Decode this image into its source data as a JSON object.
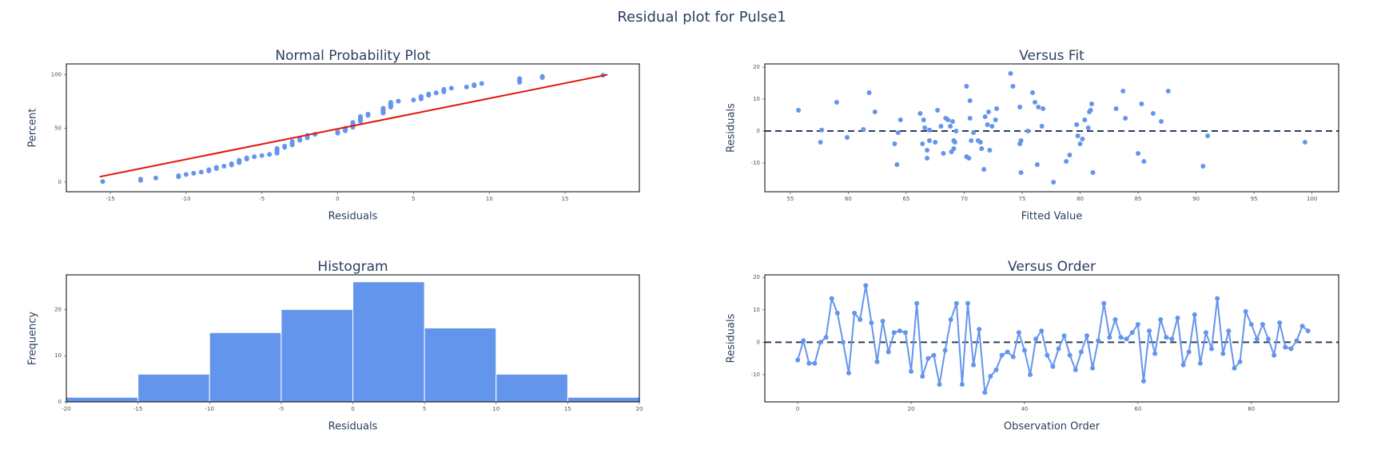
{
  "title": "Residual plot for Pulse1",
  "chart_data": [
    {
      "type": "scatter",
      "title": "Normal Probability Plot",
      "xlabel": "Residuals",
      "ylabel": "Percent",
      "color": "#6495ed",
      "x": [
        -15.5,
        -13,
        -13,
        -12,
        -10.5,
        -10.5,
        -10,
        -9.5,
        -9,
        -8.5,
        -8.5,
        -8,
        -8,
        -7.5,
        -7,
        -7,
        -6.5,
        -6.5,
        -6.5,
        -6,
        -6,
        -5.5,
        -5,
        -4.5,
        -4,
        -4,
        -4,
        -4,
        -4,
        -3.5,
        -3.5,
        -3,
        -3,
        -3,
        -3,
        -2.5,
        -2.5,
        -2,
        -2,
        -2,
        -1.5,
        0,
        0,
        0.5,
        0.5,
        0.5,
        1,
        1,
        1,
        1,
        1,
        1.5,
        1.5,
        1.5,
        1.5,
        1.5,
        2,
        2,
        3,
        3,
        3,
        3,
        3,
        3.5,
        3.5,
        3.5,
        3.5,
        3.5,
        4,
        5,
        5.5,
        5.5,
        5.5,
        6,
        6,
        6.5,
        7,
        7,
        7,
        7.5,
        8.5,
        9,
        9,
        9.5,
        12,
        12,
        12,
        12,
        13.5,
        13.5,
        17.5
      ],
      "y": [
        0.5,
        1.6,
        2.7,
        3.8,
        4.9,
        6.0,
        7.1,
        8.2,
        9.3,
        10.4,
        11.5,
        12.6,
        13.7,
        14.8,
        15.9,
        17.0,
        18.1,
        19.2,
        20.3,
        21.4,
        22.5,
        23.6,
        24.7,
        25.8,
        26.9,
        28.0,
        29.1,
        30.2,
        31.3,
        32.4,
        33.5,
        34.6,
        35.7,
        36.8,
        37.9,
        39.0,
        40.1,
        41.2,
        42.3,
        43.4,
        44.5,
        45.6,
        46.7,
        47.8,
        48.9,
        50.0,
        51.1,
        52.2,
        53.3,
        54.4,
        55.5,
        56.6,
        57.7,
        58.8,
        59.9,
        61.0,
        62.1,
        63.2,
        64.3,
        65.4,
        66.5,
        67.6,
        68.7,
        69.8,
        70.9,
        72.0,
        73.1,
        74.2,
        75.3,
        76.4,
        77.5,
        78.6,
        79.7,
        80.8,
        81.9,
        83.0,
        84.1,
        85.2,
        86.3,
        87.4,
        88.5,
        89.6,
        90.7,
        91.8,
        92.9,
        94.0,
        95.1,
        96.2,
        97.3,
        98.4,
        99.5
      ],
      "fit_line": {
        "x": [
          -15.7,
          17.8
        ],
        "y": [
          5,
          100
        ],
        "color": "#e3120b"
      },
      "xlim": [
        -17.9,
        19.9
      ],
      "ylim": [
        -9,
        110
      ],
      "xticks": [
        -15,
        -10,
        -5,
        0,
        5,
        10,
        15
      ],
      "yticks": [
        0,
        50,
        100
      ]
    },
    {
      "type": "scatter",
      "title": "Versus Fit",
      "xlabel": "Fitted Value",
      "ylabel": "Residuals",
      "color": "#6495ed",
      "x": [
        55.7,
        57.6,
        57.7,
        59,
        59.9,
        61.3,
        61.8,
        62.3,
        64,
        64.2,
        64.5,
        64.3,
        66.2,
        66.4,
        66.5,
        66.6,
        66.8,
        66.8,
        67,
        67,
        67.5,
        67.7,
        68,
        68.2,
        68.4,
        68.6,
        68.8,
        68.9,
        69,
        69.1,
        69.1,
        69.3,
        69.2,
        70.2,
        70.2,
        70.4,
        70.5,
        70.5,
        70.6,
        70.8,
        71.2,
        71.4,
        71.5,
        71.7,
        71.8,
        72.1,
        72.2,
        72,
        72.4,
        72.7,
        72.8,
        74,
        74.2,
        74.8,
        74.8,
        74.9,
        74.9,
        75.5,
        75.9,
        76.1,
        76.3,
        76.4,
        76.7,
        76.8,
        77.7,
        78.8,
        79.1,
        79.7,
        79.8,
        80,
        80.2,
        80.4,
        80.7,
        80.8,
        80.9,
        81,
        81.1,
        83.1,
        83.7,
        83.9,
        85,
        85.3,
        85.5,
        86.3,
        87,
        87.6,
        90.6,
        91,
        99.4
      ],
      "y": [
        6.5,
        -3.5,
        0.3,
        9,
        -2,
        0.5,
        12,
        6,
        -4,
        -10.5,
        3.5,
        -0.5,
        5.5,
        -4,
        3.5,
        1,
        -6,
        -8.5,
        -3,
        0.3,
        -3.5,
        6.5,
        1.5,
        -7,
        4,
        3.5,
        1.5,
        -6.5,
        3,
        -3,
        -5.5,
        0,
        -3.5,
        14,
        -8,
        -8.5,
        9.5,
        4,
        -3,
        -0.5,
        -3,
        -3.5,
        -5.5,
        -12,
        4.5,
        6,
        -6,
        2,
        1.5,
        3.5,
        7,
        18,
        14,
        7.5,
        -4,
        -13,
        -3,
        0,
        12,
        9,
        -10.5,
        7.5,
        1.5,
        7,
        -16,
        -9.5,
        -7.5,
        2,
        -1.5,
        -4,
        -2.5,
        3.5,
        1,
        6,
        6.5,
        8.5,
        -13,
        7,
        12.5,
        4,
        -7,
        8.5,
        -9.5,
        5.5,
        3,
        12.5,
        -11,
        -1.5,
        -3.5
      ],
      "ref_line": {
        "y": 0,
        "color": "#2a3f5f"
      },
      "xlim": [
        52.8,
        102.3
      ],
      "ylim": [
        -19,
        21
      ],
      "xticks": [
        55,
        60,
        65,
        70,
        75,
        80,
        85,
        90,
        95,
        100
      ],
      "yticks": [
        -10,
        0,
        10,
        20
      ]
    },
    {
      "type": "histogram",
      "title": "Histogram",
      "xlabel": "Residuals",
      "ylabel": "Frequency",
      "color": "#6495ed",
      "bins": [
        -20,
        -15,
        -10,
        -5,
        0,
        5,
        10,
        15,
        20
      ],
      "counts": [
        1,
        6,
        15,
        20,
        26,
        16,
        6,
        1
      ],
      "xlim": [
        -20,
        20
      ],
      "ylim": [
        0,
        27.5
      ],
      "xticks": [
        -20,
        -15,
        -10,
        -5,
        0,
        5,
        10,
        15,
        20
      ],
      "yticks": [
        0,
        10,
        20
      ]
    },
    {
      "type": "line",
      "title": "Versus Order",
      "xlabel": "Observation Order",
      "ylabel": "Residuals",
      "color": "#6495ed",
      "x": [
        0,
        1,
        2,
        3,
        4,
        5,
        6,
        7,
        8,
        9,
        10,
        11,
        12,
        13,
        14,
        15,
        16,
        17,
        18,
        19,
        20,
        21,
        22,
        23,
        24,
        25,
        26,
        27,
        28,
        29,
        30,
        31,
        32,
        33,
        34,
        35,
        36,
        37,
        38,
        39,
        40,
        41,
        42,
        43,
        44,
        45,
        46,
        47,
        48,
        49,
        50,
        51,
        52,
        53,
        54,
        55,
        56,
        57,
        58,
        59,
        60,
        61,
        62,
        63,
        64,
        65,
        66,
        67,
        68,
        69,
        70,
        71,
        72,
        73,
        74,
        75,
        76,
        77,
        78,
        79,
        80,
        81,
        82,
        83,
        84,
        85,
        86,
        87,
        88,
        89,
        90
      ],
      "y": [
        -5.5,
        0.5,
        -6.5,
        -6.5,
        0,
        1.5,
        13.5,
        9,
        0,
        -9.5,
        9,
        7,
        17.5,
        6,
        -6,
        6.5,
        -3,
        3,
        3.5,
        3,
        -9,
        12,
        -10.5,
        -5,
        -4,
        -13,
        -2.5,
        7,
        12,
        -13,
        12,
        -7,
        4,
        -15.5,
        -10.5,
        -8.5,
        -4,
        -3,
        -4.5,
        3,
        -2.5,
        -10,
        1,
        3.5,
        -4,
        -7.5,
        -2,
        2,
        -4,
        -8.5,
        -3,
        2,
        -8,
        0.5,
        12,
        1.5,
        7,
        1.5,
        1,
        3,
        5.5,
        -12,
        3.5,
        -3.5,
        7,
        1.5,
        1,
        7.5,
        -7,
        -3,
        8.5,
        -6.5,
        3,
        -2,
        13.5,
        -3.5,
        3.5,
        -8,
        -6,
        9.5,
        5.5,
        1,
        5.5,
        1,
        -4,
        6,
        -1.5,
        -2,
        0.5,
        5,
        3.5
      ],
      "ref_line": {
        "y": 0,
        "color": "#2a3f5f"
      },
      "xlim": [
        -5.8,
        95.4
      ],
      "ylim": [
        -18.4,
        20.8
      ],
      "xticks": [
        0,
        20,
        40,
        60,
        80
      ],
      "yticks": [
        -10,
        0,
        10,
        20
      ]
    }
  ]
}
